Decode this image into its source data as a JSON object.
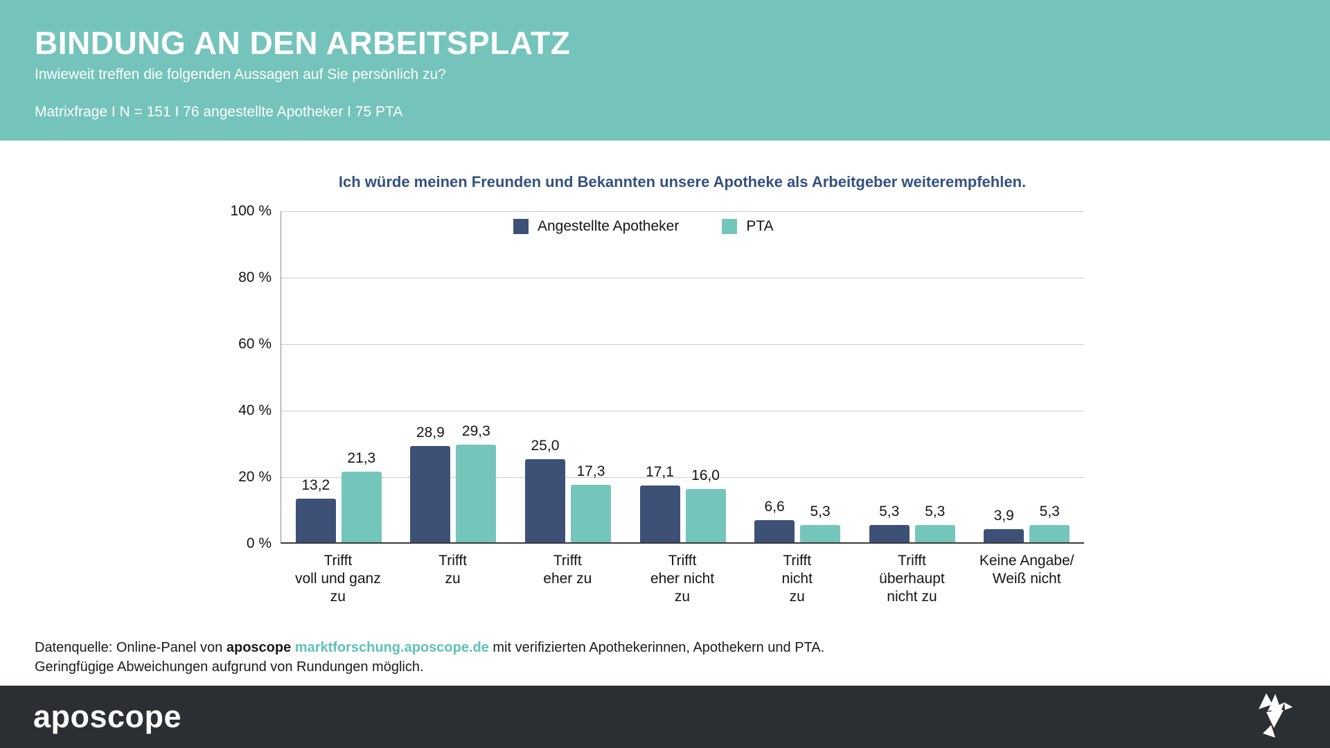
{
  "header": {
    "title": "BINDUNG AN DEN ARBEITSPLATZ",
    "subtitle": "Inwieweit treffen die folgenden Aussagen auf Sie persönlich zu?",
    "meta": "Matrixfrage I N = 151 I 76 angestellte Apotheker I 75 PTA",
    "bg_color": "#74c4bb",
    "text_color": "#ffffff"
  },
  "chart_data": {
    "type": "bar",
    "title": "Ich würde meinen Freunden und Bekannten unsere Apotheke als Arbeitgeber weiterempfehlen.",
    "title_color": "#33517e",
    "categories": [
      {
        "lines": [
          "Trifft",
          "voll und ganz",
          "zu"
        ]
      },
      {
        "lines": [
          "Trifft",
          "zu"
        ]
      },
      {
        "lines": [
          "Trifft",
          "eher zu"
        ]
      },
      {
        "lines": [
          "Trifft",
          "eher nicht",
          "zu"
        ]
      },
      {
        "lines": [
          "Trifft",
          "nicht",
          "zu"
        ]
      },
      {
        "lines": [
          "Trifft",
          "überhaupt",
          "nicht zu"
        ]
      },
      {
        "lines": [
          "Keine Angabe/",
          "Weiß nicht"
        ]
      }
    ],
    "series": [
      {
        "name": "Angestellte Apotheker",
        "color": "#3d5176",
        "values": [
          13.2,
          28.9,
          25.0,
          17.1,
          6.6,
          5.3,
          3.9
        ],
        "labels": [
          "13,2",
          "28,9",
          "25,0",
          "17,1",
          "6,6",
          "5,3",
          "3,9"
        ]
      },
      {
        "name": "PTA",
        "color": "#74c6ba",
        "values": [
          21.3,
          29.3,
          17.3,
          16.0,
          5.3,
          5.3,
          5.3
        ],
        "labels": [
          "21,3",
          "29,3",
          "17,3",
          "16,0",
          "5,3",
          "5,3",
          "5,3"
        ]
      }
    ],
    "ylim": [
      0,
      100
    ],
    "yticks": [
      "100 %",
      "80 %",
      "60 %",
      "40 %",
      "20 %",
      "0 %"
    ],
    "grid": true,
    "gridline_color": "#cacaca",
    "legend_position": "top-center"
  },
  "footer": {
    "source_prefix": "Datenquelle: Online-Panel von ",
    "source_brand": "aposcope",
    "source_link": "marktforschung.aposcope.de",
    "source_suffix": " mit verifizierten Apothekerinnen, Apothekern und PTA.",
    "note": "Geringfügige Abweichungen aufgrund von Rundungen möglich.",
    "link_color": "#5fc2b8"
  },
  "brandbar": {
    "logo_text": "aposcope",
    "bg_color": "#2b2e33",
    "bird_icon": "origami-bird-icon"
  }
}
